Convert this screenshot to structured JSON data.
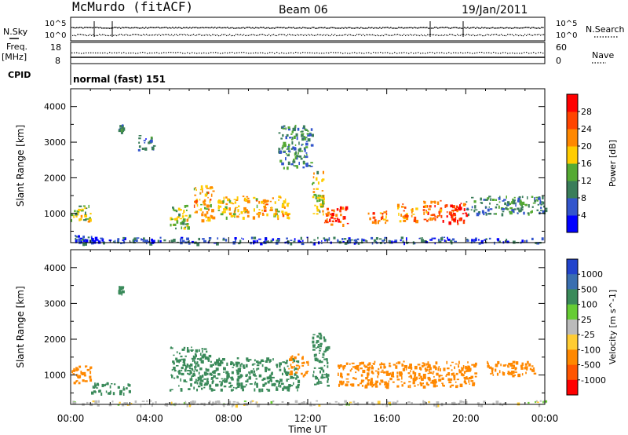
{
  "header": {
    "station": "McMurdo (fitACF)",
    "beam": "Beam 06",
    "date": "19/Jan/2011"
  },
  "status": {
    "nsky_label": "N.Sky",
    "nsky_ticks": [
      "10^5",
      "10^0"
    ],
    "nsearch_label": "N.Search",
    "nsearch_ticks": [
      "10^5",
      "10^0"
    ],
    "freq_label": "Freq.",
    "freq_unit": "[MHz]",
    "freq_ticks": [
      "18",
      "8"
    ],
    "nave_label": "Nave",
    "nave_ticks": [
      "60",
      "0"
    ],
    "cpid_label": "CPID",
    "cpid_value": "normal (fast) 151"
  },
  "chart_data": [
    {
      "type": "heatmap",
      "panel": "power",
      "ylabel": "Slant Range [km]",
      "xlabel": "Time UT",
      "x_ticks": [
        "00:00",
        "04:00",
        "08:00",
        "12:00",
        "16:00",
        "20:00",
        "00:00"
      ],
      "xlim": [
        0,
        24
      ],
      "ylim": [
        180,
        4500
      ],
      "y_ticks": [
        1000,
        2000,
        3000,
        4000
      ],
      "colorbar": {
        "label": "Power [dB]",
        "ticks": [
          "4",
          "8",
          "12",
          "16",
          "20",
          "24",
          "28"
        ],
        "colors": [
          "#0000ff",
          "#3355cc",
          "#3a7d5a",
          "#55aa33",
          "#ffcc00",
          "#ff8800",
          "#ff4400",
          "#ff0000"
        ]
      },
      "echo_regions": [
        {
          "t": [
            0.0,
            1.0
          ],
          "range": [
            800,
            1300
          ],
          "power": 16
        },
        {
          "t": [
            0.2,
            1.1
          ],
          "range": [
            250,
            400
          ],
          "power": 6
        },
        {
          "t": [
            2.4,
            2.6
          ],
          "range": [
            3300,
            3500
          ],
          "power": 10
        },
        {
          "t": [
            3.4,
            4.2
          ],
          "range": [
            2800,
            3200
          ],
          "power": 8
        },
        {
          "t": [
            5.0,
            6.0
          ],
          "range": [
            600,
            1300
          ],
          "power": 16
        },
        {
          "t": [
            6.2,
            7.2
          ],
          "range": [
            800,
            1800
          ],
          "power": 20
        },
        {
          "t": [
            7.4,
            9.0
          ],
          "range": [
            900,
            1500
          ],
          "power": 18
        },
        {
          "t": [
            9.2,
            11.0
          ],
          "range": [
            900,
            1500
          ],
          "power": 20
        },
        {
          "t": [
            10.5,
            12.2
          ],
          "range": [
            2300,
            3500
          ],
          "power": 10
        },
        {
          "t": [
            12.2,
            12.8
          ],
          "range": [
            1000,
            2200
          ],
          "power": 16
        },
        {
          "t": [
            12.8,
            14.0
          ],
          "range": [
            700,
            1200
          ],
          "power": 26
        },
        {
          "t": [
            15.0,
            16.0
          ],
          "range": [
            700,
            1100
          ],
          "power": 24
        },
        {
          "t": [
            16.5,
            17.5
          ],
          "range": [
            800,
            1300
          ],
          "power": 22
        },
        {
          "t": [
            17.8,
            18.8
          ],
          "range": [
            800,
            1400
          ],
          "power": 24
        },
        {
          "t": [
            18.8,
            20.0
          ],
          "range": [
            700,
            1300
          ],
          "power": 28
        },
        {
          "t": [
            20.0,
            24.0
          ],
          "range": [
            1000,
            1500
          ],
          "power": 10
        },
        {
          "t": [
            0.0,
            24.0
          ],
          "range": [
            180,
            350
          ],
          "power": 6
        }
      ]
    },
    {
      "type": "heatmap",
      "panel": "velocity",
      "ylabel": "Slant Range [km]",
      "xlabel": "Time UT",
      "x_ticks": [
        "00:00",
        "04:00",
        "08:00",
        "12:00",
        "16:00",
        "20:00",
        "00:00"
      ],
      "xlim": [
        0,
        24
      ],
      "ylim": [
        180,
        4500
      ],
      "y_ticks": [
        1000,
        2000,
        3000,
        4000
      ],
      "colorbar": {
        "label": "Velocity [m s^-1]",
        "ticks": [
          "1000",
          "500",
          "100",
          "25",
          "-25",
          "-100",
          "-500",
          "-1000"
        ],
        "colors": [
          "#2244cc",
          "#3a6fb0",
          "#3a8a5a",
          "#66cc33",
          "#bbbbbb",
          "#ffcc33",
          "#ff8800",
          "#ff5500",
          "#ff0000"
        ]
      },
      "echo_regions": [
        {
          "t": [
            0.0,
            1.0
          ],
          "range": [
            800,
            1300
          ],
          "velocity": -300
        },
        {
          "t": [
            1.0,
            3.0
          ],
          "range": [
            500,
            800
          ],
          "velocity": 200
        },
        {
          "t": [
            2.4,
            2.6
          ],
          "range": [
            3300,
            3500
          ],
          "velocity": 300
        },
        {
          "t": [
            5.0,
            7.0
          ],
          "range": [
            600,
            1800
          ],
          "velocity": 200
        },
        {
          "t": [
            7.0,
            11.5
          ],
          "range": [
            600,
            1500
          ],
          "velocity": 200
        },
        {
          "t": [
            11.0,
            12.0
          ],
          "range": [
            1000,
            1600
          ],
          "velocity": -300
        },
        {
          "t": [
            12.2,
            13.0
          ],
          "range": [
            700,
            2200
          ],
          "velocity": 300
        },
        {
          "t": [
            13.5,
            20.5
          ],
          "range": [
            700,
            1400
          ],
          "velocity": -300
        },
        {
          "t": [
            21.0,
            23.5
          ],
          "range": [
            1000,
            1400
          ],
          "velocity": -300
        },
        {
          "t": [
            0.0,
            24.0
          ],
          "range": [
            180,
            300
          ],
          "velocity": 0
        }
      ]
    }
  ]
}
